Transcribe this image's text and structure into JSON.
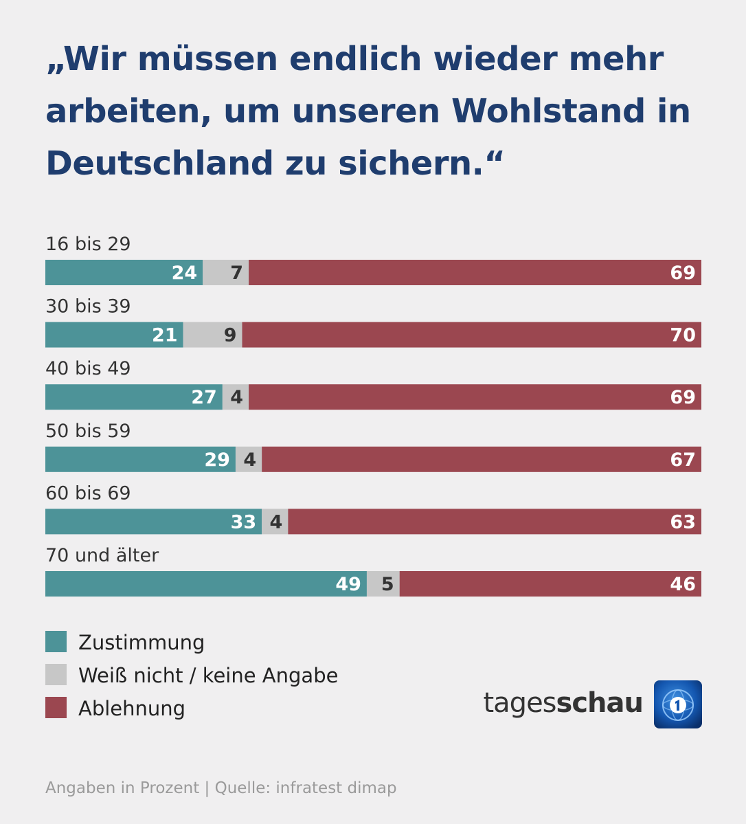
{
  "title": "„Wir müssen endlich wieder mehr arbeiten, um unseren Wohlstand in Deutschland zu sichern.“",
  "footer": "Angaben in Prozent | Quelle: infratest dimap",
  "logo": {
    "text_light": "tages",
    "text_bold": "schau",
    "icon": "ard-1-globe-icon"
  },
  "colors": {
    "agree": "#4d9398",
    "unknown": "#c7c7c7",
    "reject": "#9b4750",
    "title": "#1f3d6e"
  },
  "chart_data": {
    "type": "bar",
    "orientation": "horizontal",
    "stacked": true,
    "title": "„Wir müssen endlich wieder mehr arbeiten, um unseren Wohlstand in Deutschland zu sichern.“",
    "categories": [
      "16 bis 29",
      "30 bis 39",
      "40 bis 49",
      "50 bis 59",
      "60 bis 69",
      "70 und älter"
    ],
    "series": [
      {
        "name": "Zustimmung",
        "values": [
          24,
          21,
          27,
          29,
          33,
          49
        ]
      },
      {
        "name": "Weiß nicht / keine Angabe",
        "values": [
          7,
          9,
          4,
          4,
          4,
          5
        ]
      },
      {
        "name": "Ablehnung",
        "values": [
          69,
          70,
          69,
          67,
          63,
          46
        ]
      }
    ],
    "xlim": [
      0,
      100
    ],
    "unit": "Prozent",
    "legend_position": "bottom-left",
    "grid": false
  }
}
